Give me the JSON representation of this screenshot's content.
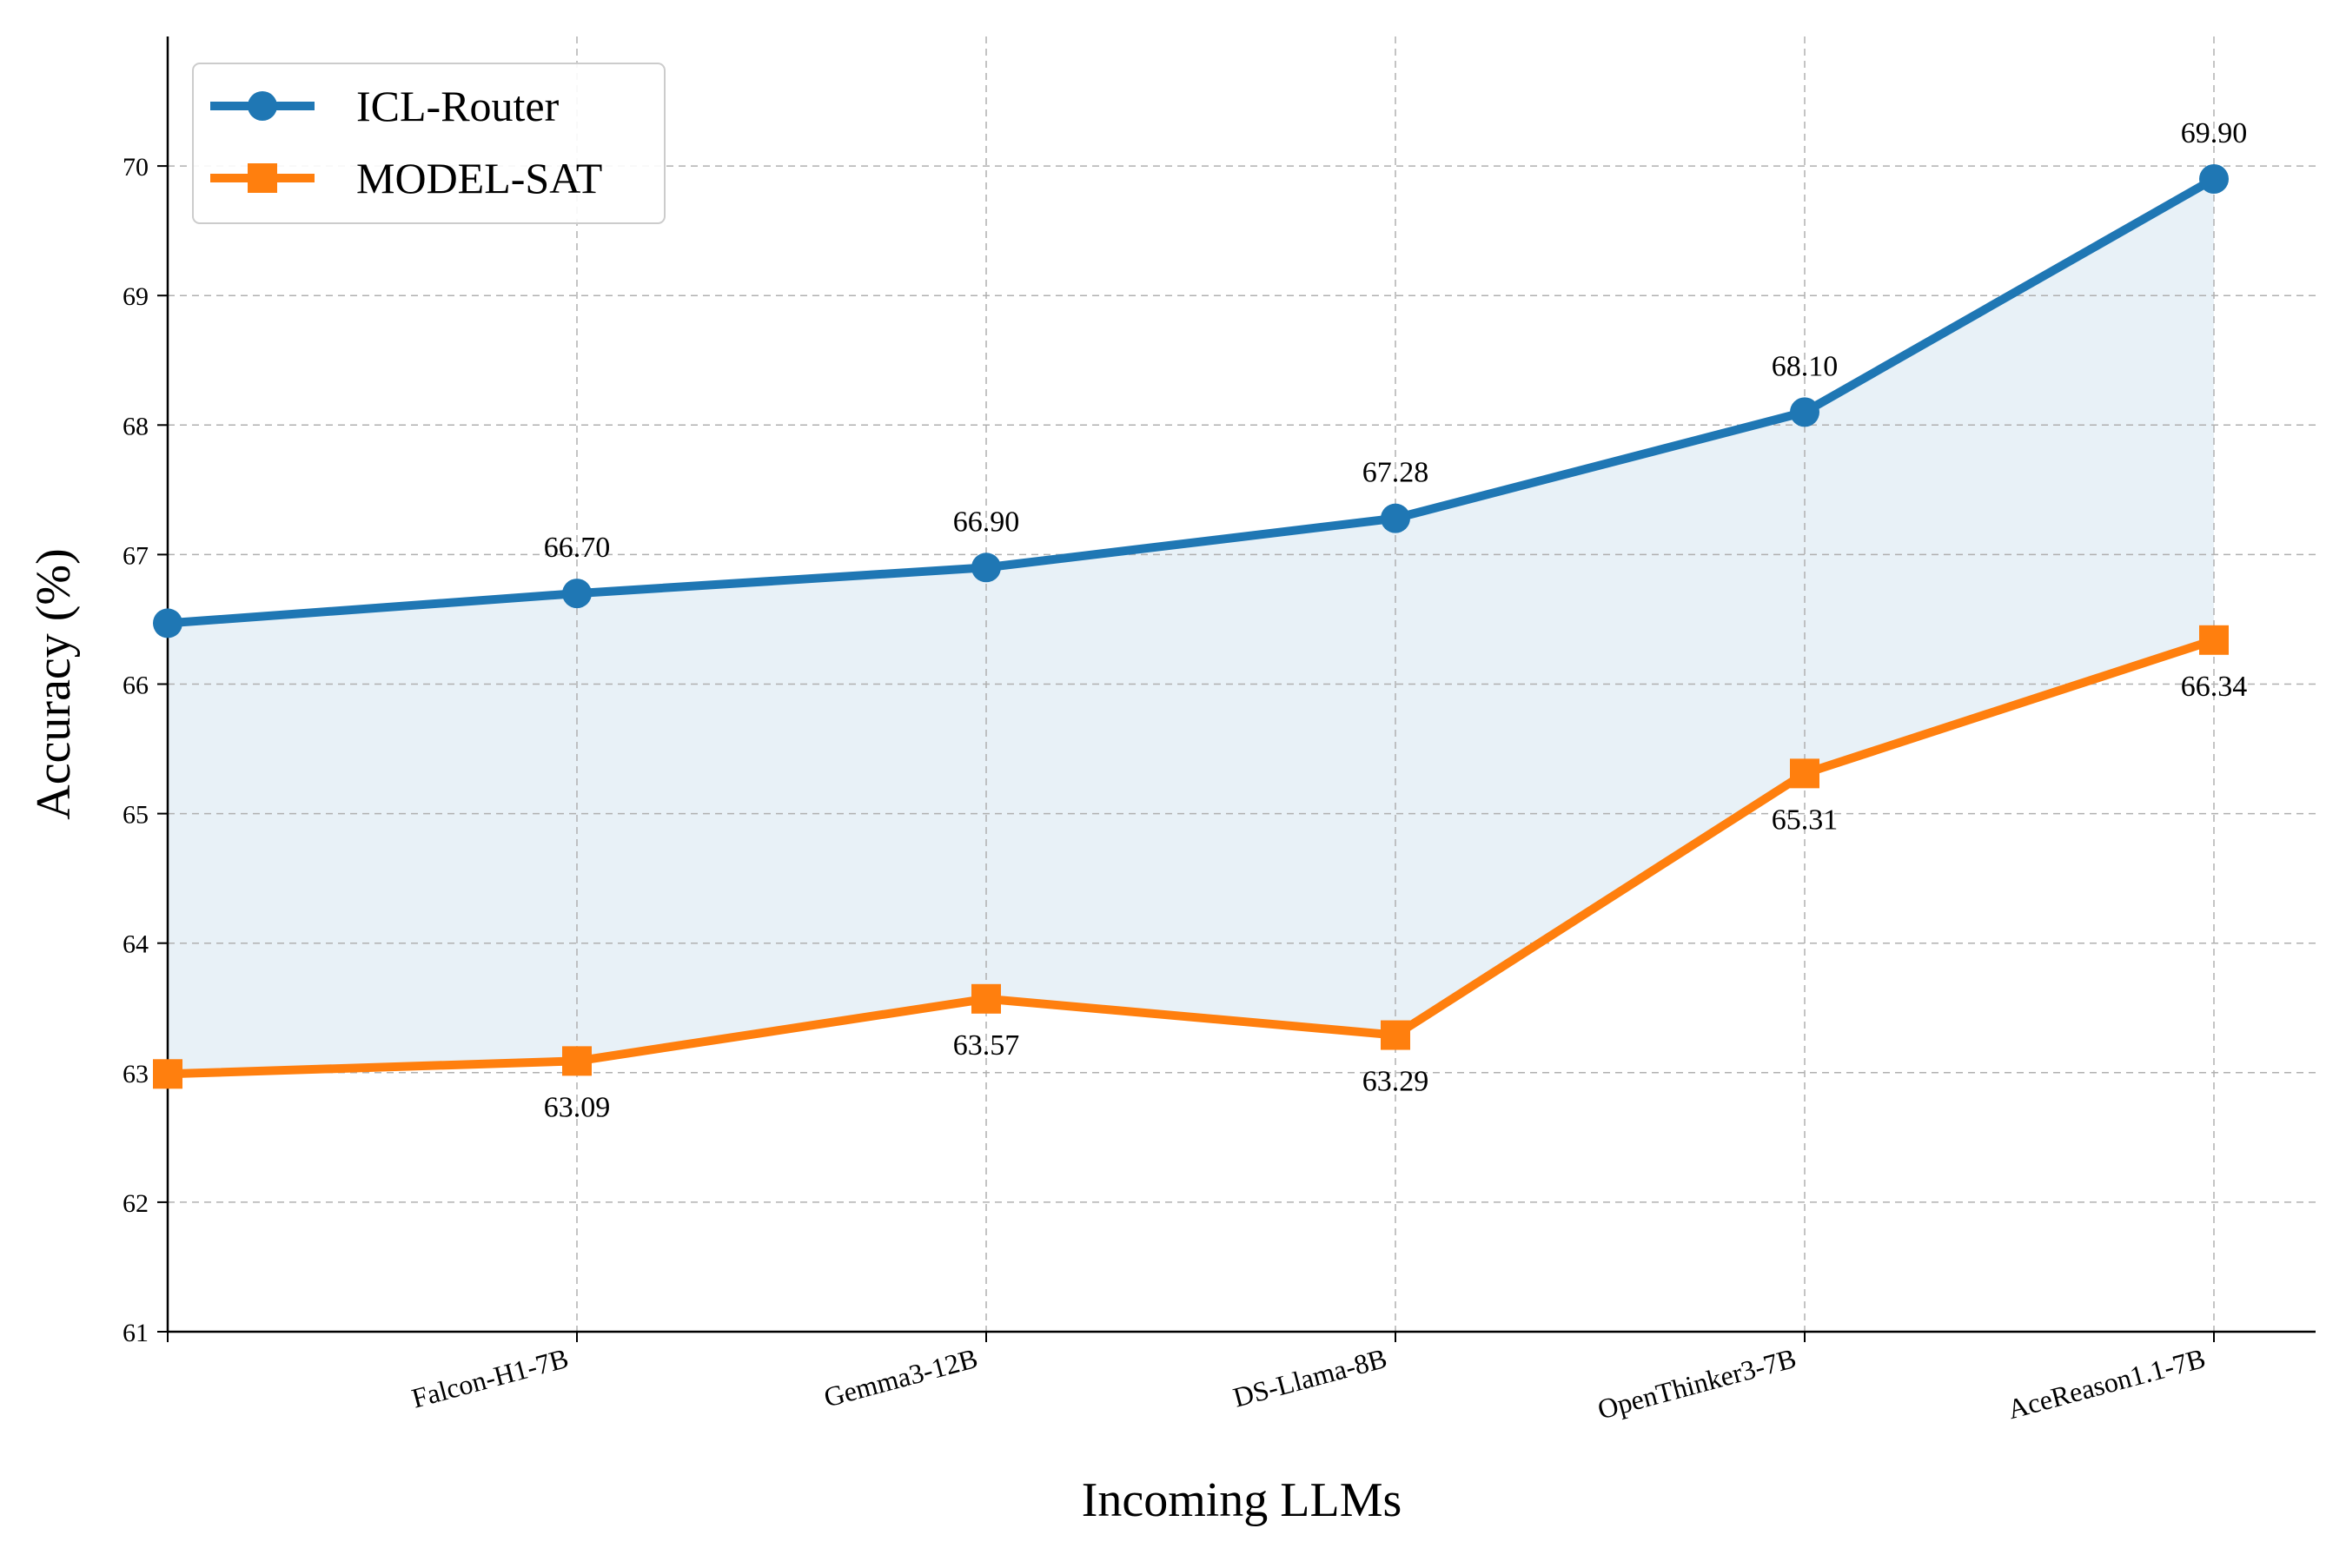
{
  "chart_data": {
    "type": "line",
    "categories": [
      "",
      "Falcon-H1-7B",
      "Gemma3-12B",
      "DS-Llama-8B",
      "OpenThinker3-7B",
      "AceReason1.1-7B"
    ],
    "series": [
      {
        "name": "ICL-Router",
        "color": "#1f77b4",
        "marker": "circle",
        "values": [
          66.47,
          66.7,
          66.9,
          67.28,
          68.1,
          69.9
        ],
        "labels": [
          "",
          "66.70",
          "66.90",
          "67.28",
          "68.10",
          "69.90"
        ],
        "label_position": "above"
      },
      {
        "name": "MODEL-SAT",
        "color": "#ff7f0e",
        "marker": "square",
        "values": [
          62.99,
          63.09,
          63.57,
          63.29,
          65.31,
          66.34
        ],
        "labels": [
          "",
          "63.09",
          "63.57",
          "63.29",
          "65.31",
          "66.34"
        ],
        "label_position": "below"
      }
    ],
    "fill_between": {
      "color": "#1f77b4",
      "opacity": 0.1
    },
    "xlabel": "Incoming LLMs",
    "ylabel": "Accuracy (%)",
    "ylim": [
      61,
      71
    ],
    "yticks": [
      61,
      62,
      63,
      64,
      65,
      66,
      67,
      68,
      69,
      70
    ],
    "grid": true,
    "legend_position": "upper-left"
  }
}
